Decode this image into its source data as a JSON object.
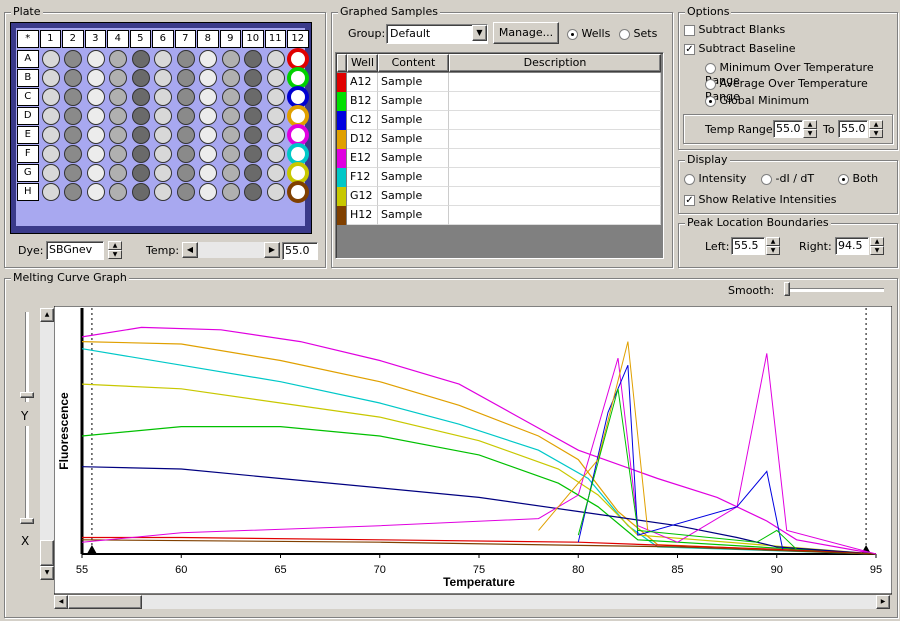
{
  "plate": {
    "title": "Plate",
    "cols": [
      "*",
      "1",
      "2",
      "3",
      "4",
      "5",
      "6",
      "7",
      "8",
      "9",
      "10",
      "11",
      "12"
    ],
    "rows": [
      "A",
      "B",
      "C",
      "D",
      "E",
      "F",
      "G",
      "H"
    ],
    "dye_label": "Dye:",
    "dye_value": "SBGnev",
    "temp_label": "Temp:",
    "temp_value": "55.0",
    "ring_colors": [
      "#e00000",
      "#00d000",
      "#0000d0",
      "#e0a000",
      "#e000e0",
      "#00c8c8",
      "#c8c800",
      "#804000"
    ]
  },
  "graphed": {
    "title": "Graphed Samples",
    "group_label": "Group:",
    "group_value": "Default",
    "manage_label": "Manage...",
    "wells_label": "Wells",
    "sets_label": "Sets",
    "columns": [
      "Well",
      "Content",
      "Description"
    ],
    "rows": [
      {
        "well": "A12",
        "content": "Sample",
        "description": "",
        "color": "#e00000"
      },
      {
        "well": "B12",
        "content": "Sample",
        "description": "",
        "color": "#00e000"
      },
      {
        "well": "C12",
        "content": "Sample",
        "description": "",
        "color": "#0000e0"
      },
      {
        "well": "D12",
        "content": "Sample",
        "description": "",
        "color": "#e0a000"
      },
      {
        "well": "E12",
        "content": "Sample",
        "description": "",
        "color": "#e000e0"
      },
      {
        "well": "F12",
        "content": "Sample",
        "description": "",
        "color": "#00c8c8"
      },
      {
        "well": "G12",
        "content": "Sample",
        "description": "",
        "color": "#c8c800"
      },
      {
        "well": "H12",
        "content": "Sample",
        "description": "",
        "color": "#804000"
      }
    ]
  },
  "options": {
    "title": "Options",
    "subtract_blanks": "Subtract Blanks",
    "subtract_baseline": "Subtract Baseline",
    "min_range": "Minimum Over Temperature Range",
    "avg_range": "Average Over Temperature Range",
    "global_min": "Global Minimum",
    "temp_range_label": "Temp Range:",
    "temp_from": "55.0",
    "to_label": "To",
    "temp_to": "55.0"
  },
  "display": {
    "title": "Display",
    "intensity": "Intensity",
    "didt": "-dI / dT",
    "both": "Both",
    "show_relative": "Show Relative Intensities"
  },
  "peak": {
    "title": "Peak Location Boundaries",
    "left_label": "Left:",
    "left_value": "55.5",
    "right_label": "Right:",
    "right_value": "94.5"
  },
  "graph": {
    "title": "Melting Curve Graph",
    "smooth_label": "Smooth:",
    "y_label": "Y",
    "x_label": "X"
  },
  "chart_data": {
    "type": "line",
    "xlabel": "Temperature",
    "ylabel": "Fluorescence",
    "xlim": [
      55,
      95
    ],
    "xticks": [
      "55",
      "60",
      "65",
      "70",
      "75",
      "80",
      "85",
      "90",
      "95"
    ],
    "series": [
      {
        "color": "#e000e0",
        "points": [
          [
            55,
            0.92
          ],
          [
            58,
            0.96
          ],
          [
            62,
            0.95
          ],
          [
            66,
            0.9
          ],
          [
            70,
            0.82
          ],
          [
            74,
            0.72
          ],
          [
            77,
            0.58
          ],
          [
            80,
            0.44
          ],
          [
            84,
            0.32
          ],
          [
            87,
            0.24
          ],
          [
            89.5,
            0.14
          ],
          [
            91,
            0.06
          ],
          [
            95,
            0.0
          ]
        ]
      },
      {
        "color": "#e0a000",
        "points": [
          [
            55,
            0.9
          ],
          [
            60,
            0.89
          ],
          [
            65,
            0.82
          ],
          [
            70,
            0.73
          ],
          [
            74,
            0.63
          ],
          [
            78,
            0.5
          ],
          [
            80,
            0.4
          ],
          [
            82,
            0.18
          ],
          [
            84,
            0.04
          ],
          [
            95,
            0.0
          ]
        ]
      },
      {
        "color": "#00c8c8",
        "points": [
          [
            55,
            0.87
          ],
          [
            60,
            0.8
          ],
          [
            65,
            0.73
          ],
          [
            70,
            0.64
          ],
          [
            74,
            0.55
          ],
          [
            78,
            0.44
          ],
          [
            80.5,
            0.32
          ],
          [
            82.5,
            0.12
          ],
          [
            84,
            0.03
          ],
          [
            95,
            0.0
          ]
        ]
      },
      {
        "color": "#c8c800",
        "points": [
          [
            55,
            0.72
          ],
          [
            60,
            0.7
          ],
          [
            65,
            0.64
          ],
          [
            70,
            0.58
          ],
          [
            75,
            0.48
          ],
          [
            79,
            0.36
          ],
          [
            81,
            0.25
          ],
          [
            83,
            0.08
          ],
          [
            95,
            0.0
          ]
        ]
      },
      {
        "color": "#00c000",
        "points": [
          [
            55,
            0.5
          ],
          [
            60,
            0.54
          ],
          [
            65,
            0.54
          ],
          [
            70,
            0.5
          ],
          [
            75,
            0.42
          ],
          [
            79,
            0.3
          ],
          [
            81,
            0.2
          ],
          [
            83,
            0.06
          ],
          [
            95,
            0.0
          ]
        ]
      },
      {
        "color": "#000080",
        "points": [
          [
            55,
            0.37
          ],
          [
            60,
            0.36
          ],
          [
            65,
            0.32
          ],
          [
            70,
            0.28
          ],
          [
            75,
            0.24
          ],
          [
            80,
            0.18
          ],
          [
            85,
            0.12
          ],
          [
            88,
            0.07
          ],
          [
            90,
            0.03
          ],
          [
            95,
            0.0
          ]
        ]
      },
      {
        "color": "#e00000",
        "points": [
          [
            55,
            0.07
          ],
          [
            60,
            0.07
          ],
          [
            70,
            0.06
          ],
          [
            80,
            0.05
          ],
          [
            90,
            0.02
          ],
          [
            95,
            0.0
          ]
        ]
      },
      {
        "color": "#804000",
        "points": [
          [
            55,
            0.06
          ],
          [
            70,
            0.05
          ],
          [
            85,
            0.03
          ],
          [
            95,
            0.0
          ]
        ]
      }
    ],
    "derivative_series": [
      {
        "color": "#e000e0",
        "points": [
          [
            55,
            0.05
          ],
          [
            60,
            0.09
          ],
          [
            70,
            0.12
          ],
          [
            78,
            0.15
          ],
          [
            80,
            0.25
          ],
          [
            82,
            0.83
          ],
          [
            83,
            0.12
          ],
          [
            85,
            0.05
          ],
          [
            88,
            0.2
          ],
          [
            89.5,
            0.85
          ],
          [
            90.5,
            0.1
          ],
          [
            95,
            0.0
          ]
        ]
      },
      {
        "color": "#0000e0",
        "points": [
          [
            80,
            0.05
          ],
          [
            81.5,
            0.6
          ],
          [
            82.5,
            0.8
          ],
          [
            83,
            0.08
          ],
          [
            88,
            0.2
          ],
          [
            89.5,
            0.35
          ],
          [
            90.3,
            0.02
          ]
        ]
      },
      {
        "color": "#e0a000",
        "points": [
          [
            78,
            0.1
          ],
          [
            81,
            0.4
          ],
          [
            82.5,
            0.9
          ],
          [
            83.5,
            0.1
          ]
        ]
      },
      {
        "color": "#00c000",
        "points": [
          [
            80,
            0.08
          ],
          [
            82,
            0.7
          ],
          [
            83,
            0.1
          ],
          [
            89,
            0.05
          ],
          [
            90,
            0.1
          ],
          [
            91,
            0.02
          ]
        ]
      }
    ]
  }
}
